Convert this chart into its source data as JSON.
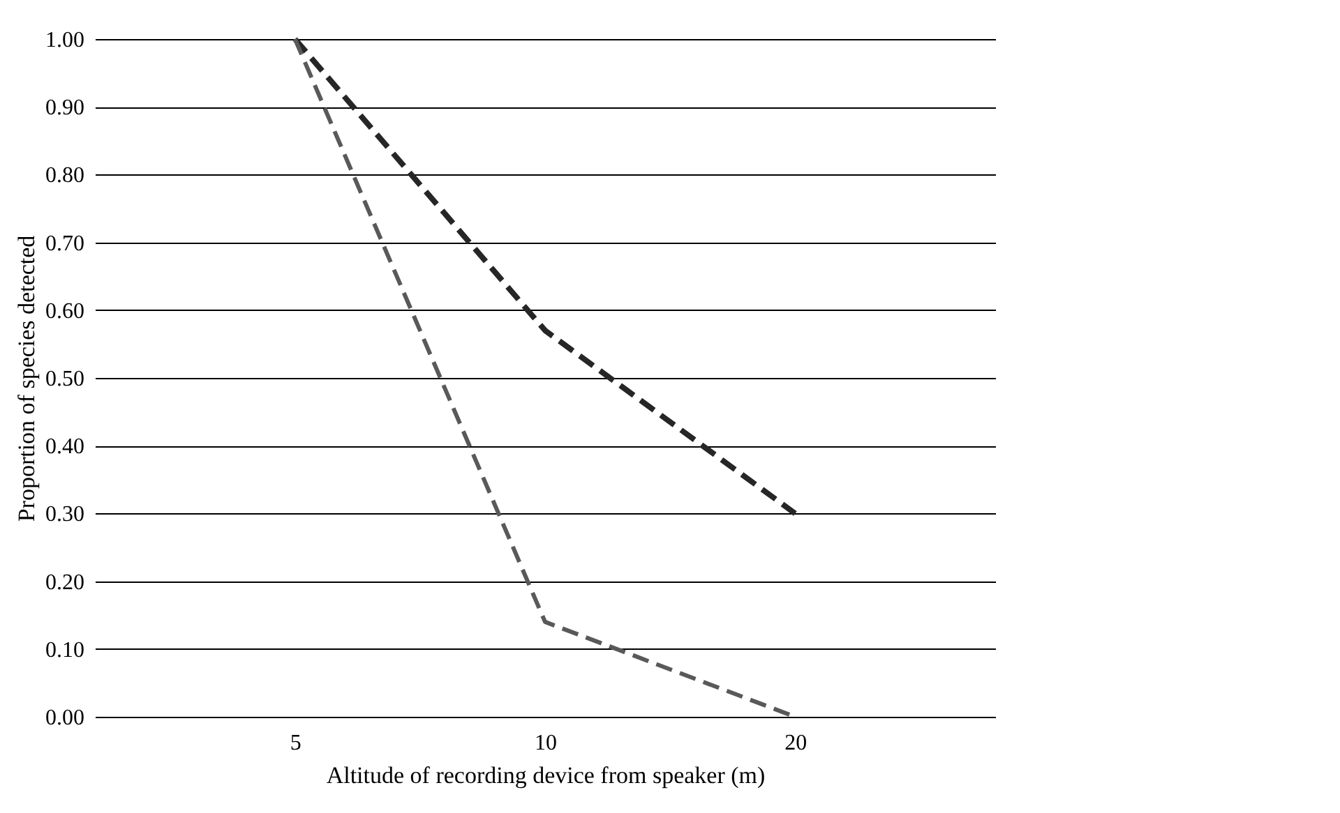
{
  "chart_data": {
    "type": "line",
    "xlabel": "Altitude of recording device  from speaker (m)",
    "ylabel": "Proportion of species detected",
    "categories": [
      "5",
      "10",
      "20"
    ],
    "series": [
      {
        "color": "#262626",
        "line_style": "dashed",
        "values": [
          1.0,
          0.57,
          0.3
        ]
      },
      {
        "color": "#595959",
        "line_style": "dashed",
        "values": [
          1.0,
          0.14,
          0.0
        ]
      }
    ],
    "ylim": [
      0,
      1
    ],
    "yticks": [
      {
        "value": 0,
        "label": "0.00"
      },
      {
        "value": 0.1,
        "label": "0.10"
      },
      {
        "value": 0.2,
        "label": "0.20"
      },
      {
        "value": 0.3,
        "label": "0.30"
      },
      {
        "value": 0.4,
        "label": "0.40"
      },
      {
        "value": 0.5,
        "label": "0.50"
      },
      {
        "value": 0.6,
        "label": "0.60"
      },
      {
        "value": 0.7,
        "label": "0.70"
      },
      {
        "value": 0.8,
        "label": "0.80"
      },
      {
        "value": 0.9,
        "label": "0.90"
      },
      {
        "value": 1,
        "label": "1.00"
      }
    ],
    "grid": "y"
  }
}
